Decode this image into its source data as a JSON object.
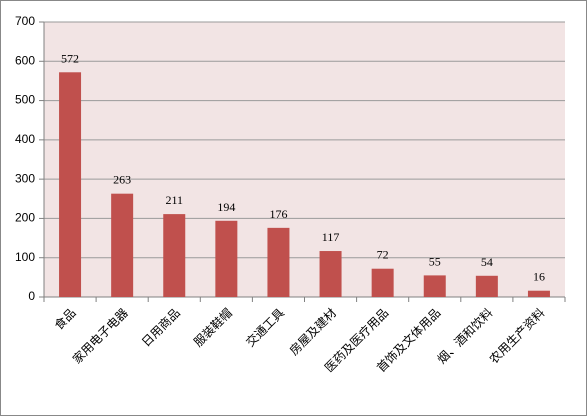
{
  "chart_data": {
    "type": "bar",
    "categories": [
      "食品",
      "家用电子电器",
      "日用商品",
      "服装鞋帽",
      "交通工具",
      "房屋及建材",
      "医药及医疗用品",
      "首饰及文体用品",
      "烟、酒和饮料",
      "农用生产资料"
    ],
    "values": [
      572,
      263,
      211,
      194,
      176,
      117,
      72,
      55,
      54,
      16
    ],
    "color": "#c0504d",
    "ylim": [
      0,
      700
    ],
    "yticks": [
      0,
      100,
      200,
      300,
      400,
      500,
      600,
      700
    ],
    "grid": true
  }
}
